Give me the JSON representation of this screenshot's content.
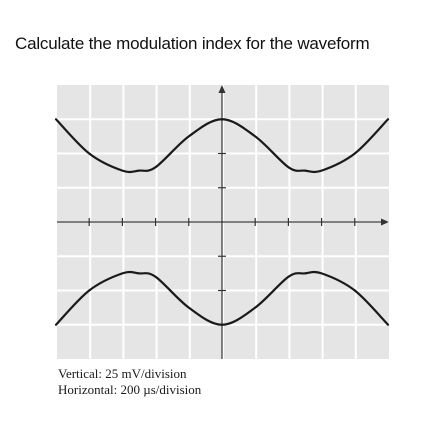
{
  "question": "Calculate the modulation index for the waveform",
  "captions": {
    "vertical": "Vertical: 25 mV/division",
    "horizontal": "Horizontal: 200 µs/division"
  },
  "colors": {
    "screen_bg": "#e5e5e5",
    "grid_line": "#ffffff",
    "trace": "#1a1a1a",
    "axis": "#333333"
  },
  "chart_data": {
    "type": "line",
    "title": "",
    "xlabel": "",
    "ylabel": "",
    "grid": true,
    "divisions": {
      "x": 10,
      "y": 8
    },
    "units": {
      "x": "div",
      "y": "div"
    },
    "xlim": [
      -5,
      5
    ],
    "ylim": [
      -4,
      4
    ],
    "series": [
      {
        "x": [
          -5,
          -4,
          -3,
          -2.5,
          -2,
          -1,
          0,
          1,
          2,
          2.5,
          3,
          4,
          5
        ],
        "values": [
          3.0,
          2.0,
          1.5,
          1.5,
          1.6,
          2.5,
          3.0,
          2.5,
          1.6,
          1.5,
          1.5,
          2.0,
          3.0
        ]
      },
      {
        "x": [
          -5,
          -4,
          -3,
          -2.5,
          -2,
          -1,
          0,
          1,
          2,
          2.5,
          3,
          4,
          5
        ],
        "values": [
          -3.0,
          -2.0,
          -1.5,
          -1.5,
          -1.6,
          -2.5,
          -3.0,
          -2.5,
          -1.6,
          -1.5,
          -1.5,
          -2.0,
          -3.0
        ]
      }
    ]
  }
}
